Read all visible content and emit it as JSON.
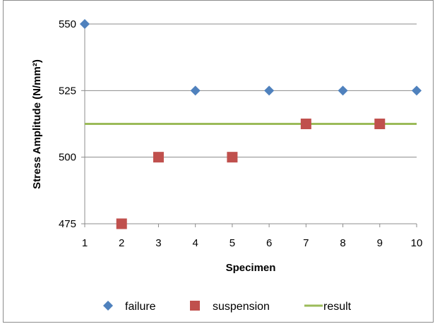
{
  "chart_data": {
    "type": "scatter",
    "title": "",
    "xlabel": "Specimen",
    "ylabel": "Stress Amplitude (N/mm²)",
    "xlim": [
      1,
      10
    ],
    "ylim": [
      475,
      550
    ],
    "x_ticks": [
      "1",
      "2",
      "3",
      "4",
      "5",
      "6",
      "7",
      "8",
      "9",
      "10"
    ],
    "y_ticks": [
      "475",
      "500",
      "525",
      "550"
    ],
    "grid": "horizontal",
    "legend_position": "bottom",
    "series": [
      {
        "name": "failure",
        "kind": "scatter",
        "marker": "diamond",
        "color": "#4f81bd",
        "points": [
          [
            1,
            550
          ],
          [
            4,
            525
          ],
          [
            6,
            525
          ],
          [
            8,
            525
          ],
          [
            10,
            525
          ]
        ]
      },
      {
        "name": "suspension",
        "kind": "scatter",
        "marker": "square",
        "color": "#c0504d",
        "points": [
          [
            2,
            475
          ],
          [
            3,
            500
          ],
          [
            5,
            500
          ],
          [
            7,
            512.5
          ],
          [
            9,
            512.5
          ]
        ]
      },
      {
        "name": "result",
        "kind": "line",
        "color": "#9bbb59",
        "points": [
          [
            1,
            512.5
          ],
          [
            10,
            512.5
          ]
        ]
      }
    ]
  }
}
